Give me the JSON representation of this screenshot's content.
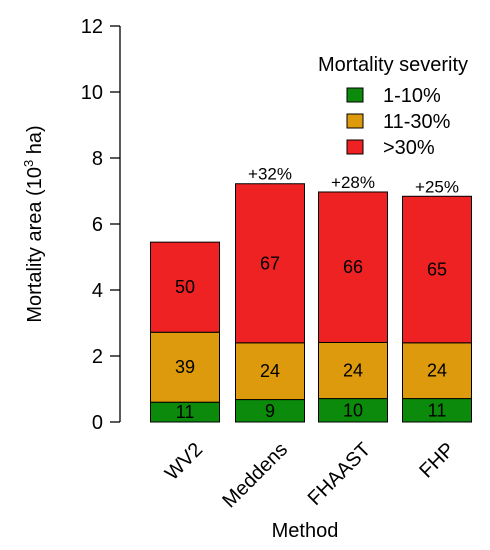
{
  "chart_data": {
    "type": "bar",
    "stacked": true,
    "categories": [
      "WV2",
      "Meddens",
      "FHAAST",
      "FHP"
    ],
    "series": [
      {
        "name": "1-10%",
        "color": "#0b8a0b",
        "values": [
          0.6,
          0.68,
          0.71,
          0.71
        ]
      },
      {
        "name": "11-30%",
        "color": "#dc9a0c",
        "values": [
          2.12,
          1.72,
          1.7,
          1.69
        ]
      },
      {
        "name": ">30%",
        "color": "#ee2222",
        "values": [
          2.73,
          4.82,
          4.56,
          4.44
        ]
      }
    ],
    "segment_labels": [
      [
        "11",
        "39",
        "50"
      ],
      [
        "9",
        "24",
        "67"
      ],
      [
        "10",
        "24",
        "66"
      ],
      [
        "11",
        "24",
        "65"
      ]
    ],
    "top_labels": [
      "",
      "+32%",
      "+28%",
      "+25%"
    ],
    "ylim": [
      0,
      12
    ],
    "yticks": [
      0,
      2,
      4,
      6,
      8,
      10,
      12
    ],
    "ylabel": {
      "prefix": "Mortality area (10",
      "sup": "3",
      "suffix": " ha)"
    },
    "xlabel": "Method",
    "legend": {
      "title": "Mortality severity",
      "position": "top-right"
    },
    "grid": false,
    "bar_outline": "#000000"
  }
}
